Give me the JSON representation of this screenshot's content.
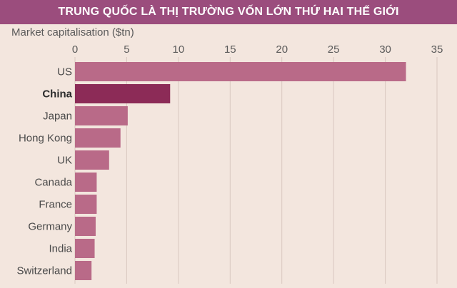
{
  "title": "TRUNG QUỐC LÀ THỊ TRƯỜNG VỐN LỚN THỨ HAI THẾ GIỚI",
  "colors": {
    "banner": "#9b4d7d",
    "background": "#f3e6de",
    "bar": "#b96a88",
    "bar_highlight": "#8c2b57",
    "grid": "#d9c8c0"
  },
  "chart_data": {
    "type": "bar",
    "orientation": "horizontal",
    "title": "TRUNG QUỐC LÀ THỊ TRƯỜNG VỐN LỚN THỨ HAI THẾ GIỚI",
    "xlabel": "Market capitalisation ($tn)",
    "ylabel": "",
    "xlim": [
      0,
      35
    ],
    "xticks": [
      0,
      5,
      10,
      15,
      20,
      25,
      30,
      35
    ],
    "grid": true,
    "highlight": "China",
    "categories": [
      "US",
      "China",
      "Japan",
      "Hong Kong",
      "UK",
      "Canada",
      "France",
      "Germany",
      "India",
      "Switzerland"
    ],
    "values": [
      32.0,
      9.2,
      5.1,
      4.4,
      3.3,
      2.1,
      2.1,
      2.0,
      1.9,
      1.6
    ]
  }
}
